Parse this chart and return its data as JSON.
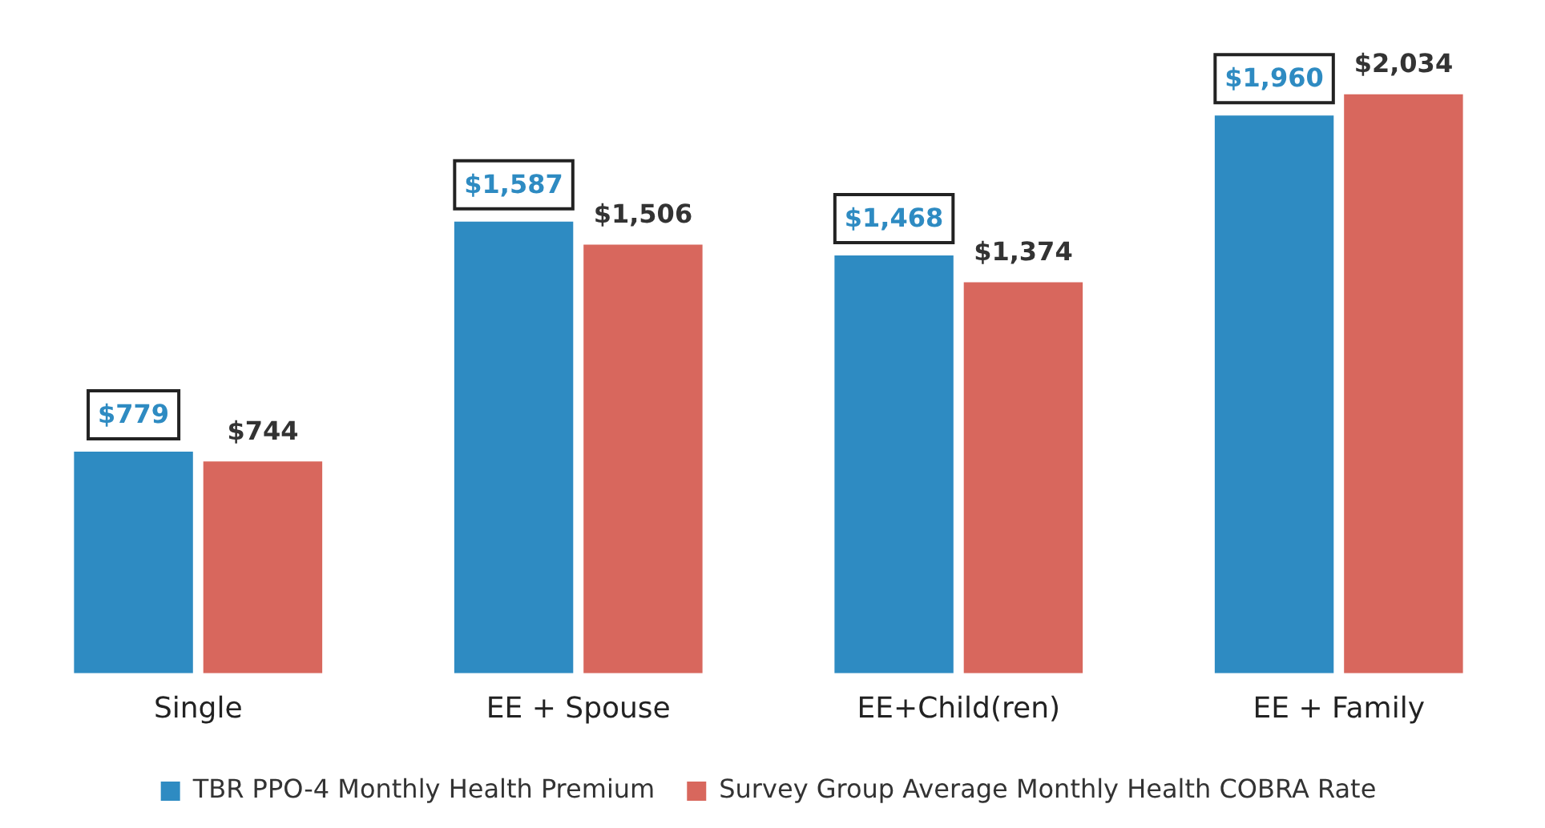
{
  "chart_data": {
    "type": "bar",
    "categories": [
      "Single",
      "EE + Spouse",
      "EE+Child(ren)",
      "EE + Family"
    ],
    "series": [
      {
        "name": "TBR PPO-4 Monthly Health Premium",
        "color": "#2e8bc2",
        "values": [
          779,
          1587,
          1468,
          1960
        ],
        "value_labels": [
          "$779",
          "$1,587",
          "$1,468",
          "$1,960"
        ]
      },
      {
        "name": "Survey Group Average Monthly Health COBRA Rate",
        "color": "#d8675d",
        "values": [
          744,
          1506,
          1374,
          2034
        ],
        "value_labels": [
          "$744",
          "$1,506",
          "$1,374",
          "$2,034"
        ]
      }
    ],
    "tick_labels": "x",
    "grid": false,
    "legend": "bottom"
  }
}
